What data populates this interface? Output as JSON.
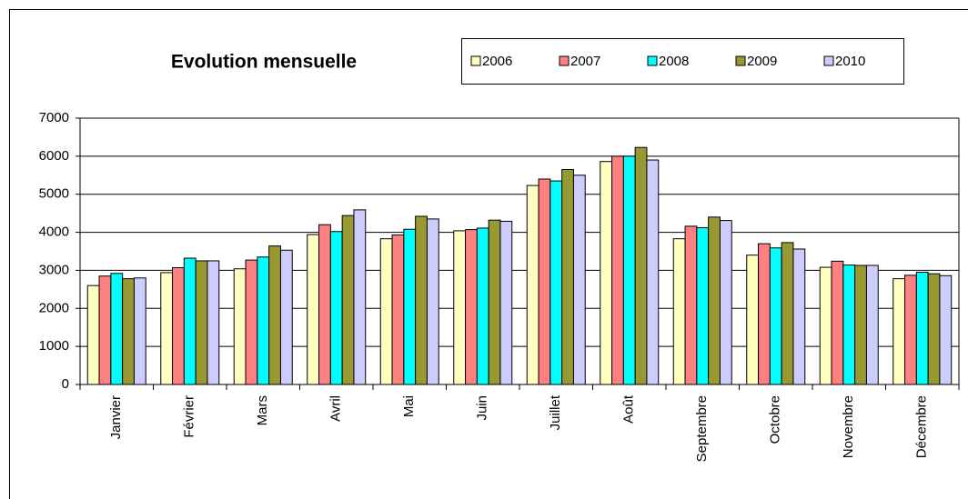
{
  "chart_data": {
    "type": "bar",
    "title": "Evolution mensuelle",
    "categories": [
      "Janvier",
      "Février",
      "Mars",
      "Avril",
      "Mai",
      "Juin",
      "Juillet",
      "Août",
      "Septembre",
      "Octobre",
      "Novembre",
      "Décembre"
    ],
    "series": [
      {
        "name": "2006",
        "color": "#ffffc0",
        "values": [
          2600,
          2940,
          3040,
          3940,
          3830,
          4040,
          5230,
          5860,
          3830,
          3400,
          3080,
          2780
        ]
      },
      {
        "name": "2007",
        "color": "#ff8080",
        "values": [
          2850,
          3070,
          3270,
          4200,
          3930,
          4070,
          5400,
          6000,
          4160,
          3700,
          3240,
          2870
        ]
      },
      {
        "name": "2008",
        "color": "#00ffff",
        "values": [
          2920,
          3320,
          3350,
          4020,
          4080,
          4110,
          5350,
          6000,
          4120,
          3590,
          3140,
          2950
        ]
      },
      {
        "name": "2009",
        "color": "#999933",
        "values": [
          2780,
          3250,
          3640,
          4440,
          4420,
          4320,
          5650,
          6230,
          4400,
          3730,
          3130,
          2910
        ]
      },
      {
        "name": "2010",
        "color": "#ccccff",
        "values": [
          2800,
          3250,
          3530,
          4590,
          4350,
          4290,
          5500,
          5900,
          4310,
          3560,
          3130,
          2860
        ]
      }
    ],
    "ylim": [
      0,
      7000
    ],
    "yticks": [
      0,
      1000,
      2000,
      3000,
      4000,
      5000,
      6000,
      7000
    ],
    "grid": true
  }
}
